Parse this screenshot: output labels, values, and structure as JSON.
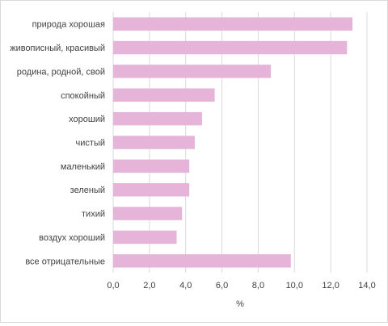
{
  "chart_data": {
    "type": "bar",
    "orientation": "horizontal",
    "categories": [
      "природа хорошая",
      "живописный,  красивый",
      "родина, родной, свой",
      "спокойный",
      "хороший",
      "чистый",
      "маленький",
      "зеленый",
      "тихий",
      "воздух хороший",
      "все отрицательные"
    ],
    "values": [
      13.2,
      12.9,
      8.7,
      5.6,
      4.9,
      4.5,
      4.2,
      4.2,
      3.8,
      3.5,
      9.8
    ],
    "xlabel": "%",
    "ylabel": "",
    "xlim": [
      0,
      14
    ],
    "xticks": [
      "0,0",
      "2,0",
      "4,0",
      "6,0",
      "8,0",
      "10,0",
      "12,0",
      "14,0"
    ],
    "grid": true,
    "bar_color": "#e6b3d9",
    "grid_color": "#d9d9d9"
  }
}
